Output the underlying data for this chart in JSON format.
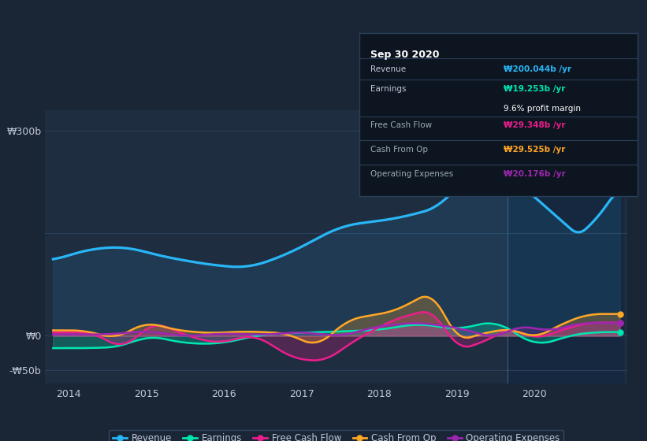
{
  "bg_color": "#1a2535",
  "plot_bg_color": "#1e2d40",
  "grid_color": "#2a3f5a",
  "text_color": "#c0c8d8",
  "title_color": "#ffffff",
  "ylabel_300": "₩300b",
  "ylabel_0": "₩0",
  "ylabel_neg50": "-₩50b",
  "x_ticks": [
    2014,
    2015,
    2016,
    2017,
    2018,
    2019,
    2020
  ],
  "ylim": [
    -70,
    330
  ],
  "xlim": [
    2013.7,
    2021.2
  ],
  "revenue_color": "#29b6f6",
  "earnings_color": "#00e5b0",
  "fcf_color": "#e91e8c",
  "cashop_color": "#ffa726",
  "opex_color": "#9c27b0",
  "tooltip_bg": "#0d1520",
  "tooltip_border": "#2a3f5a",
  "tooltip_title": "Sep 30 2020",
  "tooltip_revenue_label": "Revenue",
  "tooltip_revenue_value": "₩200.044b /yr",
  "tooltip_earnings_label": "Earnings",
  "tooltip_earnings_value": "₩19.253b /yr",
  "tooltip_margin": "9.6% profit margin",
  "tooltip_fcf_label": "Free Cash Flow",
  "tooltip_fcf_value": "₩29.348b /yr",
  "tooltip_cashop_label": "Cash From Op",
  "tooltip_cashop_value": "₩29.525b /yr",
  "tooltip_opex_label": "Operating Expenses",
  "tooltip_opex_value": "₩20.176b /yr",
  "legend_labels": [
    "Revenue",
    "Earnings",
    "Free Cash Flow",
    "Cash From Op",
    "Operating Expenses"
  ]
}
